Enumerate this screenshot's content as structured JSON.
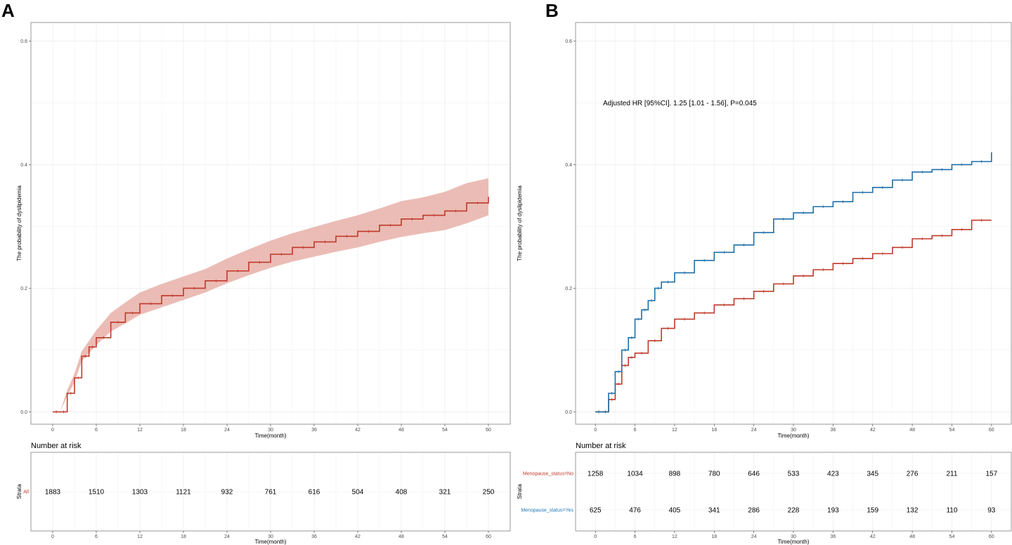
{
  "panels": {
    "A": {
      "label": "A",
      "ylabel": "The probability of dyslipidemia",
      "xlabel": "Time(month)"
    },
    "B": {
      "label": "B",
      "ylabel": "The probability of dyslipidemia",
      "xlabel": "Time(month)",
      "annotation": "Adjusted HR [95%CI]. 1.25 [1.01 - 1.56], P=0.045"
    }
  },
  "risk_tables": {
    "A": {
      "title": "Number at risk",
      "strata_axis_label": "Strata",
      "xlabel": "Time(month)",
      "rows": [
        {
          "name": "All",
          "color": "#c0392b",
          "values": [
            "1883",
            "1510",
            "1303",
            "1121",
            "932",
            "761",
            "616",
            "504",
            "408",
            "321",
            "250"
          ]
        }
      ]
    },
    "B": {
      "title": "Number at risk",
      "strata_axis_label": "Strata",
      "xlabel": "Time(month)",
      "rows": [
        {
          "name": "Menopause_status=No",
          "color": "#c0392b",
          "values": [
            "1258",
            "1034",
            "898",
            "780",
            "646",
            "533",
            "423",
            "345",
            "276",
            "211",
            "157"
          ]
        },
        {
          "name": "Menopause_status=Yes",
          "color": "#1f78b4",
          "values": [
            "625",
            "476",
            "405",
            "341",
            "286",
            "228",
            "193",
            "159",
            "132",
            "110",
            "93"
          ]
        }
      ]
    }
  },
  "colors": {
    "red": "#c0392b",
    "red_band": "#e8b0a8",
    "blue": "#1f6fa8",
    "grid": "#ebebeb",
    "frame": "#7f7f7f"
  },
  "chart_data": [
    {
      "panel": "A",
      "type": "line",
      "title": "",
      "xlabel": "Time(month)",
      "ylabel": "The probability of dyslipidemia",
      "xlim": [
        -3,
        63
      ],
      "ylim": [
        -0.02,
        0.63
      ],
      "xticks": [
        0,
        6,
        12,
        18,
        24,
        30,
        36,
        42,
        48,
        54,
        60
      ],
      "yticks": [
        0.0,
        0.2,
        0.4,
        0.6
      ],
      "ytick_labels": [
        "0.0",
        "0.2",
        "0.4",
        "0.6"
      ],
      "grid": true,
      "series": [
        {
          "name": "All",
          "color": "#c0392b",
          "x": [
            0,
            1,
            2,
            3,
            4,
            5,
            6,
            8,
            10,
            12,
            15,
            18,
            21,
            24,
            27,
            30,
            33,
            36,
            39,
            42,
            45,
            48,
            51,
            54,
            57,
            60
          ],
          "y": [
            0,
            0,
            0.03,
            0.055,
            0.09,
            0.105,
            0.12,
            0.145,
            0.16,
            0.175,
            0.188,
            0.2,
            0.212,
            0.228,
            0.242,
            0.255,
            0.266,
            0.275,
            0.284,
            0.292,
            0.302,
            0.312,
            0.318,
            0.325,
            0.338,
            0.348
          ],
          "ci_low": [
            0,
            0,
            0.025,
            0.048,
            0.082,
            0.095,
            0.108,
            0.13,
            0.143,
            0.157,
            0.169,
            0.181,
            0.193,
            0.208,
            0.221,
            0.233,
            0.243,
            0.251,
            0.259,
            0.266,
            0.275,
            0.283,
            0.289,
            0.294,
            0.305,
            0.318
          ],
          "ci_high": [
            0,
            0,
            0.035,
            0.062,
            0.098,
            0.115,
            0.132,
            0.16,
            0.177,
            0.193,
            0.207,
            0.219,
            0.231,
            0.248,
            0.263,
            0.277,
            0.289,
            0.299,
            0.309,
            0.318,
            0.329,
            0.341,
            0.347,
            0.356,
            0.37,
            0.378
          ]
        }
      ]
    },
    {
      "panel": "B",
      "type": "line",
      "title": "",
      "xlabel": "Time(month)",
      "ylabel": "The probability of dyslipidemia",
      "xlim": [
        -3,
        63
      ],
      "ylim": [
        -0.02,
        0.63
      ],
      "xticks": [
        0,
        6,
        12,
        18,
        24,
        30,
        36,
        42,
        48,
        54,
        60
      ],
      "yticks": [
        0.0,
        0.2,
        0.4,
        0.6
      ],
      "ytick_labels": [
        "0.0",
        "0.2",
        "0.4",
        "0.6"
      ],
      "grid": true,
      "series": [
        {
          "name": "Menopause_status=No",
          "color": "#c0392b",
          "x": [
            0,
            1,
            2,
            3,
            4,
            5,
            6,
            8,
            10,
            12,
            15,
            18,
            21,
            24,
            27,
            30,
            33,
            36,
            39,
            42,
            45,
            48,
            51,
            54,
            57,
            60
          ],
          "y": [
            0,
            0,
            0.02,
            0.045,
            0.075,
            0.088,
            0.095,
            0.115,
            0.135,
            0.15,
            0.16,
            0.173,
            0.183,
            0.195,
            0.207,
            0.22,
            0.23,
            0.24,
            0.248,
            0.256,
            0.266,
            0.28,
            0.285,
            0.295,
            0.31,
            0.31
          ]
        },
        {
          "name": "Menopause_status=Yes",
          "color": "#1f6fa8",
          "x": [
            0,
            1,
            2,
            3,
            4,
            5,
            6,
            7,
            8,
            9,
            10,
            12,
            15,
            18,
            21,
            24,
            27,
            30,
            33,
            36,
            39,
            42,
            45,
            48,
            51,
            54,
            57,
            60
          ],
          "y": [
            0,
            0,
            0.03,
            0.065,
            0.1,
            0.12,
            0.15,
            0.165,
            0.18,
            0.2,
            0.21,
            0.225,
            0.245,
            0.258,
            0.27,
            0.29,
            0.312,
            0.322,
            0.332,
            0.34,
            0.355,
            0.363,
            0.375,
            0.388,
            0.392,
            0.4,
            0.405,
            0.42
          ]
        }
      ]
    }
  ]
}
